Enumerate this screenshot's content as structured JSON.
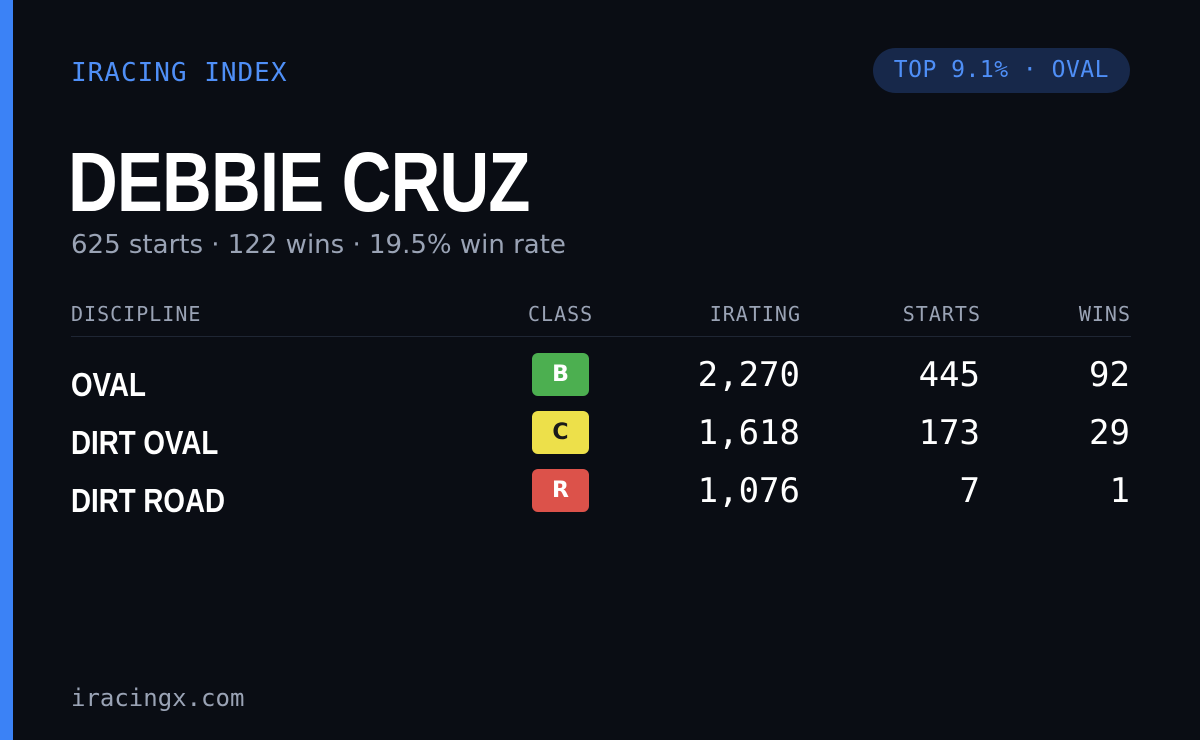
{
  "brand": "IRACING INDEX",
  "rank_pill": "TOP 9.1% · OVAL",
  "driver": {
    "name": "DEBBIE CRUZ",
    "summary": "625 starts · 122 wins · 19.5% win rate"
  },
  "table": {
    "headers": {
      "discipline": "DISCIPLINE",
      "class": "CLASS",
      "irating": "IRATING",
      "starts": "STARTS",
      "wins": "WINS"
    },
    "rows": [
      {
        "discipline": "OVAL",
        "class": "B",
        "class_color": "#4caf50",
        "class_text_color": "#ffffff",
        "irating": "2,270",
        "starts": "445",
        "wins": "92"
      },
      {
        "discipline": "DIRT OVAL",
        "class": "C",
        "class_color": "#ede04a",
        "class_text_color": "#1a1a1a",
        "irating": "1,618",
        "starts": "173",
        "wins": "29"
      },
      {
        "discipline": "DIRT ROAD",
        "class": "R",
        "class_color": "#dc524a",
        "class_text_color": "#ffffff",
        "irating": "1,076",
        "starts": "7",
        "wins": "1"
      }
    ]
  },
  "footer": "iracingx.com",
  "colors": {
    "background": "#0a0d14",
    "accent": "#3b82f6",
    "pill_background": "#17284a",
    "muted_text": "#9aa3b5"
  }
}
